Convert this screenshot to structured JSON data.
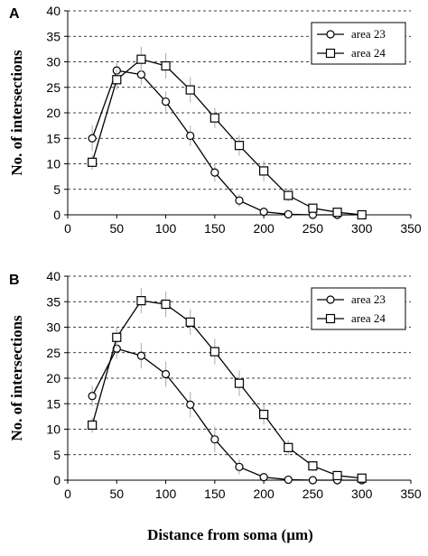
{
  "chart_data": [
    {
      "type": "line",
      "panel_label": "A",
      "ylabel": "No. of intersections",
      "xlabel": "",
      "xlim": [
        0,
        350
      ],
      "ylim": [
        0,
        40
      ],
      "xticks": [
        "0",
        "50",
        "100",
        "150",
        "200",
        "250",
        "300",
        "350"
      ],
      "yticks": [
        "0",
        "5",
        "10",
        "15",
        "20",
        "25",
        "30",
        "35",
        "40"
      ],
      "grid": "horizontal dashed",
      "legend_position": "top-right",
      "series": [
        {
          "name": "area 23",
          "marker": "circle",
          "x": [
            25,
            50,
            75,
            100,
            125,
            150,
            175,
            200,
            225,
            250,
            275,
            300
          ],
          "y": [
            15,
            28.3,
            27.5,
            22.2,
            15.5,
            8.3,
            2.8,
            0.6,
            0.1,
            0,
            0,
            0
          ],
          "err": [
            2.5,
            1.5,
            2.0,
            2.0,
            2.0,
            1.8,
            1.2,
            0.6,
            0.3,
            0,
            0,
            0
          ]
        },
        {
          "name": "area 24",
          "marker": "square",
          "x": [
            25,
            50,
            75,
            100,
            125,
            150,
            175,
            200,
            225,
            250,
            275,
            300
          ],
          "y": [
            10.3,
            26.5,
            30.5,
            29.2,
            24.5,
            19,
            13.6,
            8.6,
            3.8,
            1.3,
            0.5,
            0
          ],
          "err": [
            1.5,
            2.0,
            2.5,
            2.5,
            2.5,
            2.0,
            2.0,
            2.0,
            1.2,
            0.6,
            0.3,
            0
          ]
        }
      ]
    },
    {
      "type": "line",
      "panel_label": "B",
      "ylabel": "No. of intersections",
      "xlabel": "Distance from soma (µm)",
      "xlim": [
        0,
        350
      ],
      "ylim": [
        0,
        40
      ],
      "xticks": [
        "0",
        "50",
        "100",
        "150",
        "200",
        "250",
        "300",
        "350"
      ],
      "yticks": [
        "0",
        "5",
        "10",
        "15",
        "20",
        "25",
        "30",
        "35",
        "40"
      ],
      "grid": "horizontal dashed",
      "legend_position": "top-right",
      "series": [
        {
          "name": "area 23",
          "marker": "circle",
          "x": [
            25,
            50,
            75,
            100,
            125,
            150,
            175,
            200,
            225,
            250,
            275,
            300
          ],
          "y": [
            16.5,
            25.8,
            24.4,
            20.8,
            14.8,
            8,
            2.6,
            0.6,
            0.1,
            0,
            0,
            0
          ],
          "err": [
            2.0,
            2.0,
            2.5,
            2.5,
            2.5,
            2.5,
            1.5,
            0.6,
            0.3,
            0,
            0,
            0
          ]
        },
        {
          "name": "area 24",
          "marker": "square",
          "x": [
            25,
            50,
            75,
            100,
            125,
            150,
            175,
            200,
            225,
            250,
            275,
            300
          ],
          "y": [
            10.8,
            28,
            35.2,
            34.5,
            31,
            25.2,
            19,
            12.9,
            6.4,
            2.8,
            0.9,
            0.4
          ],
          "err": [
            1.5,
            2.0,
            2.5,
            2.5,
            2.5,
            2.5,
            2.5,
            2.0,
            1.5,
            1.0,
            0.5,
            0.3
          ]
        }
      ]
    }
  ]
}
